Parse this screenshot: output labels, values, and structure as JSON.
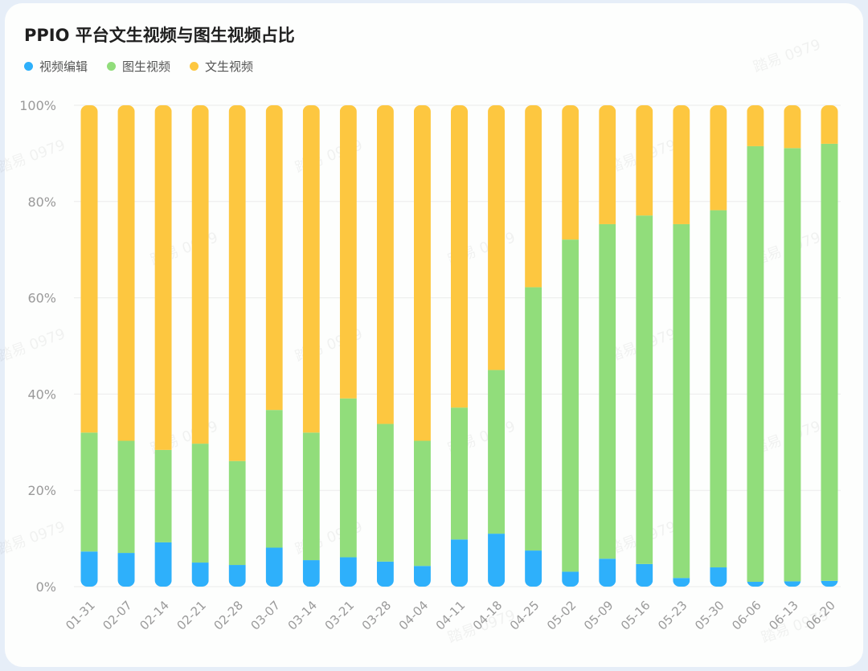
{
  "chart_data": {
    "type": "bar",
    "stacked": true,
    "title": "PPIO 平台文生视频与图生视频占比",
    "categories": [
      "01-31",
      "02-07",
      "02-14",
      "02-21",
      "02-28",
      "03-07",
      "03-14",
      "03-21",
      "03-28",
      "04-04",
      "04-11",
      "04-18",
      "04-25",
      "05-02",
      "05-09",
      "05-16",
      "05-23",
      "05-30",
      "06-06",
      "06-13",
      "06-20"
    ],
    "series": [
      {
        "name": "视频编辑",
        "color": "#2eb0fb",
        "values": [
          7.3,
          7.0,
          9.2,
          5.0,
          4.5,
          8.1,
          5.5,
          6.1,
          5.2,
          4.3,
          9.8,
          11.0,
          7.5,
          3.1,
          5.8,
          4.7,
          1.8,
          4.0,
          1.0,
          1.1,
          1.2
        ]
      },
      {
        "name": "图生视频",
        "color": "#91dd7b",
        "values": [
          24.7,
          23.3,
          19.2,
          24.7,
          21.6,
          28.6,
          26.5,
          33.0,
          28.6,
          26.0,
          27.4,
          34.0,
          54.7,
          69.0,
          69.5,
          72.4,
          73.5,
          74.2,
          90.5,
          90.0,
          90.8
        ]
      },
      {
        "name": "文生视频",
        "color": "#fdc740",
        "values": [
          68.0,
          69.7,
          71.6,
          70.3,
          73.9,
          63.3,
          68.0,
          60.9,
          66.2,
          69.7,
          62.8,
          55.0,
          37.8,
          27.9,
          24.7,
          22.9,
          24.7,
          21.8,
          8.5,
          8.9,
          8.0
        ]
      }
    ],
    "ylim": [
      0,
      100
    ],
    "yticks": [
      "0%",
      "20%",
      "40%",
      "60%",
      "80%",
      "100%"
    ],
    "grid": true,
    "legend": "top-left",
    "watermark": "踏易 0979"
  }
}
